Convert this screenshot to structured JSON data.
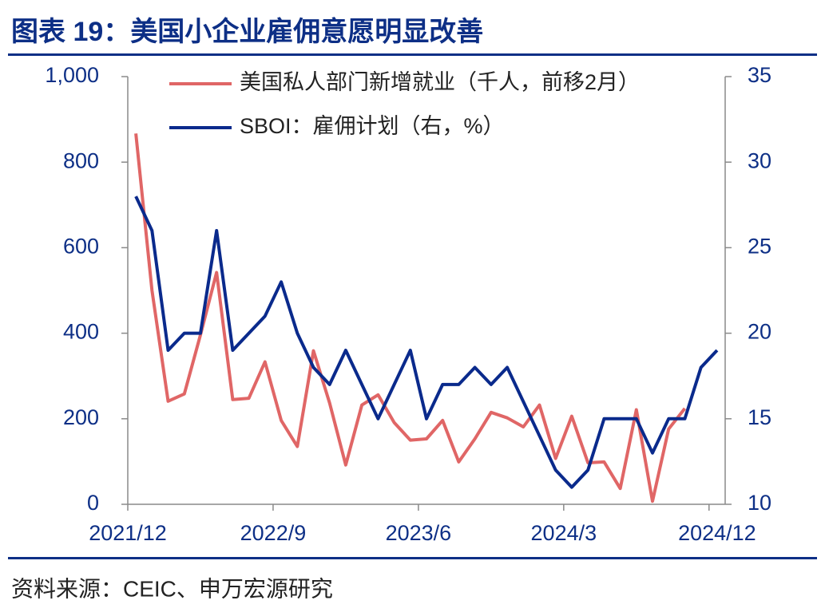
{
  "chart_data": {
    "type": "line",
    "title": "图表 19：美国小企业雇佣意愿明显改善",
    "source": "资料来源：CEIC、申万宏源研究",
    "categories": [
      "2021/12",
      null,
      null,
      null,
      null,
      null,
      null,
      null,
      null,
      "2022/9",
      null,
      null,
      null,
      null,
      null,
      null,
      null,
      null,
      "2023/6",
      null,
      null,
      null,
      null,
      null,
      null,
      null,
      null,
      "2024/3",
      null,
      null,
      null,
      null,
      null,
      null,
      null,
      null,
      "2024/12"
    ],
    "series": [
      {
        "name": "美国私人部门新增就业（千人，前移2月）",
        "color": "#e06666",
        "axis": "y",
        "values": [
          867,
          500,
          241,
          258,
          396,
          542,
          245,
          248,
          333,
          196,
          135,
          359,
          237,
          92,
          232,
          256,
          191,
          150,
          153,
          196,
          99,
          153,
          215,
          202,
          181,
          232,
          107,
          206,
          97,
          99,
          37,
          221,
          7,
          176,
          224,
          null,
          null
        ]
      },
      {
        "name": "SBOI：雇佣计划（右，%）",
        "color": "#0a2a8c",
        "axis": "y2",
        "values": [
          28,
          26,
          19,
          20,
          20,
          26,
          19,
          20,
          21,
          23,
          20,
          18,
          17,
          19,
          17,
          15,
          17,
          19,
          15,
          17,
          17,
          18,
          17,
          18,
          16,
          14,
          12,
          11,
          12,
          15,
          15,
          15,
          13,
          15,
          15,
          18,
          19
        ]
      }
    ],
    "ylim": [
      0,
      1000
    ],
    "yticks": [
      0,
      200,
      400,
      600,
      800,
      {
        "value": 1000,
        "label": "1,000"
      }
    ],
    "y2lim": [
      10,
      35
    ],
    "y2ticks": [
      10,
      15,
      20,
      25,
      30,
      35
    ],
    "grid": false
  }
}
